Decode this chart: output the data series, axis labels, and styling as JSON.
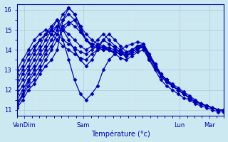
{
  "xlabel": "Température (°c)",
  "bg_color": "#cce8f0",
  "plot_bg": "#cce8f0",
  "line_color": "#0000bb",
  "marker": "D",
  "markersize": 2.5,
  "linewidth": 0.9,
  "ylim": [
    10.7,
    16.3
  ],
  "xlim": [
    0,
    112
  ],
  "yticks": [
    11,
    12,
    13,
    14,
    15,
    16
  ],
  "ytick_labels": [
    "11",
    "12",
    "13",
    "14",
    "15",
    "16"
  ],
  "xtick_positions": [
    4,
    36,
    88,
    104
  ],
  "xtick_labels": [
    "VenDim",
    "Sam",
    "Lun",
    "Mar"
  ],
  "grid_major_color": "#b0c8d8",
  "grid_minor_color": "#d0e4ee",
  "series": [
    [
      11.1,
      11.5,
      12.0,
      12.3,
      12.8,
      13.2,
      13.5,
      14.0,
      15.5,
      16.1,
      15.8,
      15.2,
      14.5,
      14.2,
      14.1,
      14.0,
      14.0,
      13.9,
      13.8,
      13.7,
      13.8,
      14.0,
      14.2,
      13.5,
      13.0,
      12.5,
      12.2,
      12.0,
      11.8,
      11.6,
      11.5,
      11.3,
      11.2,
      11.1,
      11.0,
      10.9,
      10.9
    ],
    [
      11.2,
      11.7,
      12.2,
      12.5,
      13.0,
      13.5,
      14.0,
      14.5,
      15.0,
      15.3,
      15.5,
      15.2,
      14.8,
      14.5,
      14.3,
      14.2,
      14.1,
      14.0,
      13.9,
      13.8,
      14.0,
      14.2,
      14.3,
      13.8,
      13.2,
      12.8,
      12.5,
      12.3,
      12.1,
      11.9,
      11.7,
      11.5,
      11.3,
      11.2,
      11.1,
      11.0,
      11.0
    ],
    [
      11.3,
      11.8,
      12.4,
      12.8,
      13.2,
      13.8,
      14.2,
      14.8,
      15.2,
      15.4,
      15.2,
      14.9,
      14.5,
      14.3,
      14.2,
      14.1,
      14.0,
      13.9,
      13.8,
      13.7,
      13.9,
      14.1,
      14.2,
      13.7,
      13.2,
      12.7,
      12.4,
      12.2,
      12.0,
      11.8,
      11.6,
      11.4,
      11.3,
      11.2,
      11.1,
      11.0,
      11.0
    ],
    [
      11.5,
      12.0,
      12.5,
      13.0,
      13.5,
      14.0,
      14.5,
      15.0,
      15.5,
      15.8,
      15.5,
      15.0,
      14.5,
      14.3,
      14.2,
      14.1,
      14.0,
      13.9,
      13.8,
      13.7,
      13.9,
      14.1,
      14.2,
      13.7,
      13.2,
      12.7,
      12.4,
      12.2,
      12.0,
      11.8,
      11.6,
      11.4,
      11.3,
      11.2,
      11.1,
      11.0,
      11.0
    ],
    [
      11.8,
      12.2,
      12.8,
      13.2,
      13.8,
      14.2,
      14.8,
      15.2,
      15.8,
      16.1,
      15.8,
      15.2,
      14.5,
      14.2,
      14.1,
      14.0,
      14.0,
      13.9,
      13.8,
      13.7,
      13.9,
      14.1,
      14.2,
      13.7,
      13.2,
      12.7,
      12.4,
      12.2,
      12.0,
      11.8,
      11.6,
      11.4,
      11.3,
      11.2,
      11.1,
      11.0,
      11.0
    ],
    [
      12.0,
      12.5,
      13.0,
      13.5,
      14.0,
      14.5,
      15.0,
      15.5,
      14.5,
      13.5,
      12.5,
      11.8,
      11.5,
      11.8,
      12.2,
      13.0,
      13.5,
      13.8,
      14.0,
      14.2,
      14.3,
      14.4,
      14.3,
      13.8,
      13.3,
      12.8,
      12.5,
      12.2,
      12.0,
      11.8,
      11.6,
      11.4,
      11.3,
      11.2,
      11.1,
      11.0,
      11.0
    ],
    [
      12.2,
      12.8,
      13.2,
      13.8,
      14.2,
      14.8,
      15.2,
      15.5,
      15.0,
      14.5,
      14.0,
      13.5,
      13.2,
      13.5,
      14.0,
      14.5,
      14.8,
      14.5,
      14.2,
      13.9,
      14.0,
      14.2,
      14.2,
      13.7,
      13.3,
      12.8,
      12.5,
      12.2,
      12.0,
      11.8,
      11.6,
      11.4,
      11.3,
      11.2,
      11.1,
      11.0,
      11.0
    ],
    [
      12.5,
      13.0,
      13.5,
      14.0,
      14.5,
      14.8,
      15.0,
      15.2,
      15.0,
      14.8,
      14.5,
      14.2,
      14.0,
      14.2,
      14.5,
      14.8,
      14.5,
      14.2,
      14.0,
      13.8,
      14.0,
      14.2,
      14.2,
      13.7,
      13.3,
      12.8,
      12.5,
      12.2,
      12.0,
      11.8,
      11.6,
      11.4,
      11.3,
      11.2,
      11.1,
      11.0,
      11.0
    ],
    [
      12.8,
      13.2,
      13.8,
      14.2,
      14.5,
      14.8,
      15.0,
      14.8,
      14.5,
      14.3,
      14.1,
      13.9,
      13.8,
      14.0,
      14.2,
      14.5,
      14.3,
      14.1,
      13.9,
      13.7,
      13.9,
      14.1,
      14.1,
      13.6,
      13.2,
      12.7,
      12.4,
      12.2,
      12.0,
      11.8,
      11.6,
      11.4,
      11.3,
      11.2,
      11.1,
      11.0,
      11.0
    ],
    [
      13.0,
      13.5,
      14.0,
      14.5,
      14.8,
      15.0,
      14.8,
      14.5,
      14.2,
      14.0,
      13.8,
      13.6,
      13.5,
      13.8,
      14.0,
      14.2,
      14.0,
      13.8,
      13.6,
      13.5,
      13.7,
      13.9,
      14.0,
      13.5,
      13.1,
      12.7,
      12.4,
      12.2,
      12.0,
      11.8,
      11.6,
      11.4,
      11.3,
      11.2,
      11.1,
      11.0,
      11.0
    ]
  ]
}
